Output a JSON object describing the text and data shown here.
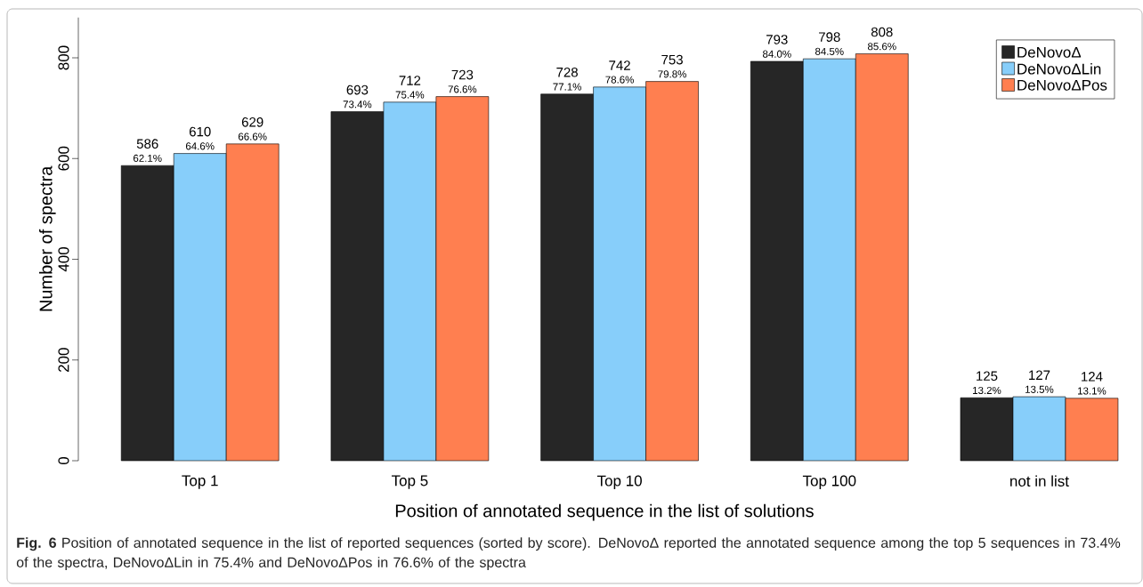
{
  "chart_data": {
    "type": "bar",
    "xlabel": "Position of annotated sequence in the list of solutions",
    "ylabel": "Number of spectra",
    "categories": [
      "Top 1",
      "Top 5",
      "Top 10",
      "Top 100",
      "not in list"
    ],
    "series": [
      {
        "name": "DeNovoΔ",
        "color": "#262626",
        "values": [
          586,
          693,
          728,
          793,
          125
        ]
      },
      {
        "name": "DeNovoΔLin",
        "color": "#87cefa",
        "values": [
          610,
          712,
          742,
          798,
          127
        ]
      },
      {
        "name": "DeNovoΔPos",
        "color": "#ff7f50",
        "values": [
          629,
          723,
          753,
          808,
          124
        ]
      }
    ],
    "ylim": [
      0,
      880
    ],
    "yticks": [
      0,
      200,
      400,
      600,
      800
    ],
    "data_labels": true,
    "legend": "top right",
    "annotations": [
      "62.1%",
      "73.4%",
      "77.1%",
      "84.0%",
      "13.2%",
      "64.6%",
      "75.4%",
      "78.6%",
      "84.5%",
      "13.5%",
      "66.6%",
      "76.6%",
      "79.8%",
      "85.6%",
      "13.1%",
      "**Fig. 6**  Position of annotated sequence in the list of reported sequences (sorted by score). DeNovoΔ reported the annotated sequence among the top 5 sequences in 73.4% of the spectra, DeNovoΔLin in 75.4% and DeNovoΔPos in 76.6% of the spectra"
    ]
  }
}
